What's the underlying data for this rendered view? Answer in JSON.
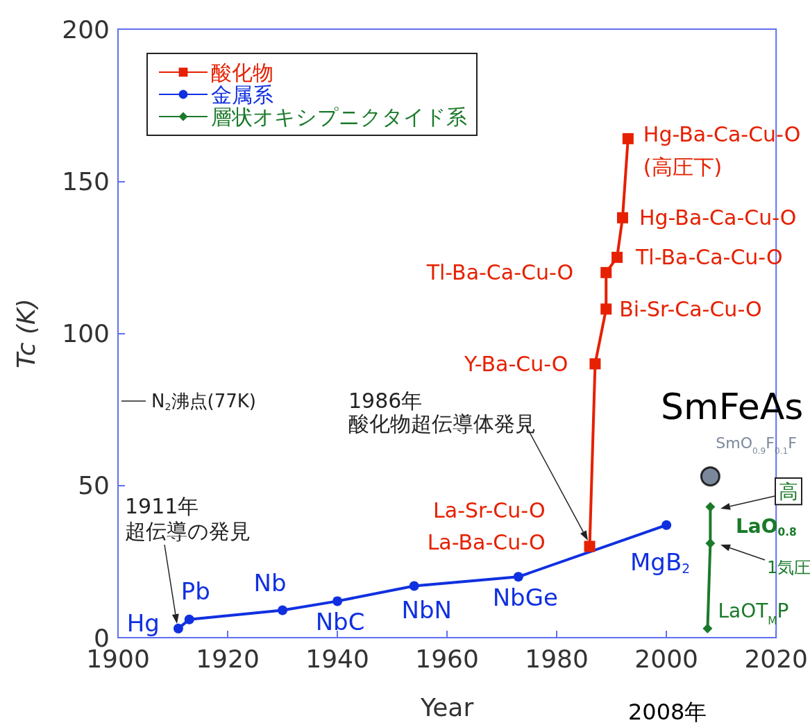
{
  "chart_data": {
    "type": "line",
    "xlabel": "Year",
    "ylabel": "Tc (K)",
    "xlim": [
      1900,
      2020
    ],
    "xticks": [
      1900,
      1920,
      1940,
      1960,
      1980,
      2000,
      2020
    ],
    "ylim": [
      0,
      200
    ],
    "yticks": [
      0,
      50,
      100,
      150,
      200
    ],
    "grid": false,
    "legend": "top left",
    "line_style": "solid",
    "series": [
      {
        "name": "酸化物",
        "color": "#e62000",
        "marker": "square",
        "x": [
          1986,
          1987,
          1989,
          1989,
          1991,
          1992,
          1993
        ],
        "values": [
          30,
          90,
          108,
          120,
          125,
          138,
          164
        ],
        "value_labels": [
          "La-Sr-Cu-O\nLa-Ba-Cu-O",
          "Y-Ba-Cu-O",
          "Bi-Sr-Ca-Cu-O",
          "Tl-Ba-Ca-Cu-O",
          "Tl-Ba-Ca-Cu-O",
          "Hg-Ba-Ca-Cu-O",
          "Hg-Ba-Ca-Cu-O\n(高圧下)"
        ]
      },
      {
        "name": "金属系",
        "color": "#1030e0",
        "marker": "circle",
        "x": [
          1911,
          1913,
          1930,
          1940,
          1954,
          1973,
          2000
        ],
        "values": [
          3,
          6,
          9,
          12,
          17,
          20,
          37
        ],
        "value_labels": [
          "Hg",
          "Pb",
          "Nb",
          "NbC",
          "NbN",
          "NbGe",
          null
        ]
      },
      {
        "name": "層状オキシプニクタイド系",
        "color": "#1a7a2a",
        "marker": "diamond",
        "x": [
          2007.5,
          2008,
          2008
        ],
        "values": [
          3,
          31,
          43
        ],
        "value_labels": [
          "LaOT$_{M}$P",
          null,
          null
        ]
      },
      {
        "type": "scatter",
        "color": "#5a6a82",
        "marker": "circle",
        "x": [
          2008
        ],
        "values": [
          53
        ],
        "value_labels": [
          "SmO$_{0.9}$F$_{0.1}$F"
        ]
      }
    ],
    "annotations": [
      "1911年",
      "超伝導の発見",
      "1986年",
      "酸化物超伝導体発見",
      "N$_{2}$沸点(77K)",
      "SmFeAs",
      "高",
      "1気圧",
      "2008年",
      "MgB$_{2}$",
      "LaO$_{0.8}$"
    ]
  }
}
